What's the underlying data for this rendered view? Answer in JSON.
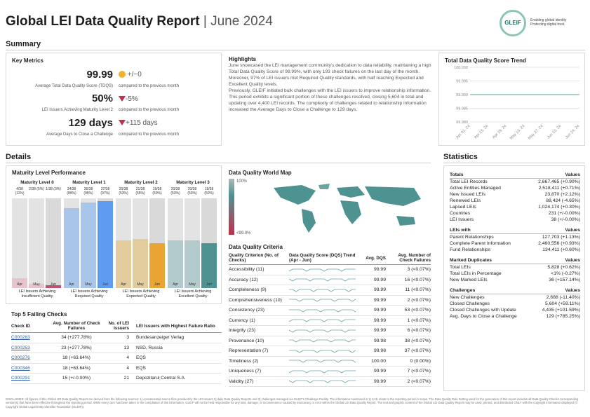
{
  "header": {
    "title": "Global LEI Data Quality Report",
    "subtitle": "June 2024",
    "logo_text": "GLEIF",
    "logo_tagline_1": "Enabling global identity",
    "logo_tagline_2": "Protecting digital trust."
  },
  "summary": {
    "heading": "Summary",
    "key_metrics": {
      "title": "Key Metrics",
      "items": [
        {
          "value": "99.99",
          "label": "Average Total Data Quality Score (TDQS)",
          "delta": "+/−0",
          "indicator": "neutral",
          "cmp": "compared to the previous month"
        },
        {
          "value": "50%",
          "label": "LEI Issuers Achieving Maturity Level 2",
          "delta": "-5%",
          "indicator": "down",
          "cmp": "compared to the previous month"
        },
        {
          "value": "129 days",
          "label": "Average Days to Close a Challenge",
          "delta": "+115 days",
          "indicator": "down",
          "cmp": "compared to the previous month"
        }
      ]
    },
    "highlights": {
      "title": "Highlights",
      "p1": "June showcased the LEI management community's dedication to data reliability, maintaining a high Total Data Quality Score of 99.99%, with only 193 check failures on the last day of the month. Moreover, 97% of LEI issuers met Required Quality standards, with half reaching Expected and Excellent Quality levels.",
      "p2": "Previously, GLEIF initiated bulk challenges with the LEI issuers to improve relationship information. This period exhibits a significant portion of these challenges resolved, closing 5,604 in total and updating over 4,400 LEI records. The complexity of challenges related to relationship information increased the Average Days to Close a Challenge to 129 days."
    },
    "trend": {
      "title": "Total Data Quality Score Trend"
    }
  },
  "chart_data": {
    "type": "line",
    "title": "Total Data Quality Score Trend",
    "x": [
      "Apr 01, 24",
      "Apr 15, 24",
      "Apr 29, 24",
      "May 13, 24",
      "May 27, 24",
      "Jun 10, 24",
      "Jun 24, 24"
    ],
    "series": [
      {
        "values": [
          99.99,
          99.99,
          99.99,
          99.99,
          99.99,
          99.99,
          99.99
        ]
      }
    ],
    "yticks": [
      "100.000",
      "99.995",
      "99.990",
      "99.985",
      "99.980"
    ],
    "ylim": [
      99.98,
      100.0
    ]
  },
  "details": {
    "heading": "Details",
    "maturity": {
      "title": "Maturity Level Performance",
      "levels": [
        {
          "name": "Maturity Level 0",
          "vals": [
            "4/38 (11%)",
            "2/38 (5%)",
            "1/38 (3%)"
          ],
          "fill": [
            0.11,
            0.05,
            0.03
          ],
          "color": "#c05070",
          "light": "#e7c3cc",
          "caption": "LEI Issuers Achieving Insufficient Quality"
        },
        {
          "name": "Maturity Level 1",
          "vals": [
            "34/38 (89%)",
            "36/38 (95%)",
            "37/38 (97%)"
          ],
          "fill": [
            0.89,
            0.95,
            0.97
          ],
          "color": "#5d9cf0",
          "light": "#a9c6ea",
          "caption": "LEI Issuers Achieving Required Quality"
        },
        {
          "name": "Maturity Level 2",
          "vals": [
            "20/38 (53%)",
            "21/38 (55%)",
            "19/38 (50%)"
          ],
          "fill": [
            0.53,
            0.55,
            0.5
          ],
          "color": "#e8a534",
          "light": "#e2cc9e",
          "caption": "LEI Issuers Achieving Expected Quality"
        },
        {
          "name": "Maturity Level 3",
          "vals": [
            "20/38 (53%)",
            "20/38 (53%)",
            "19/38 (50%)"
          ],
          "fill": [
            0.53,
            0.53,
            0.5
          ],
          "color": "#4f9292",
          "light": "#b2cacb",
          "caption": "LEI Issuers Achieving Excellent Quality"
        }
      ],
      "months": [
        "Apr",
        "May",
        "Jun"
      ]
    },
    "map": {
      "title": "Data Quality World Map",
      "legend_top": "100%",
      "legend_bottom": "<99.0%"
    },
    "criteria": {
      "title": "Data Quality Criteria",
      "h1": "Quality Criterion (No. of Checks)",
      "h2": "Data Quality Score (DQS) Trend (Apr - Jun)",
      "h3": "Avg. DQS",
      "h4": "Avg. Number of Check Failures",
      "rows": [
        [
          "Accessibility (11)",
          "99.99",
          "3 (<0.07%)"
        ],
        [
          "Accuracy (12)",
          "99.99",
          "16 (<0.07%)"
        ],
        [
          "Completeness (9)",
          "99.99",
          "11 (<0.07%)"
        ],
        [
          "Comprehensiveness (10)",
          "99.99",
          "2 (<0.07%)"
        ],
        [
          "Consistency (23)",
          "99.99",
          "53 (<0.07%)"
        ],
        [
          "Currency (1)",
          "99.99",
          "1 (<0.07%)"
        ],
        [
          "Integrity (23)",
          "99.99",
          "6 (<0.07%)"
        ],
        [
          "Provenance (10)",
          "99.98",
          "38 (<0.07%)"
        ],
        [
          "Representation (7)",
          "99.98",
          "37 (<0.07%)"
        ],
        [
          "Timeliness (2)",
          "100.00",
          "0 (0.00%)"
        ],
        [
          "Uniqueness (7)",
          "99.99",
          "7 (<0.07%)"
        ],
        [
          "Validity (27)",
          "99.99",
          "2 (<0.07%)"
        ]
      ]
    },
    "failing": {
      "title": "Top 5 Failing Checks",
      "h1": "Check ID",
      "h2": "Avg. Number of Check Failures",
      "h3": "No. of LEI Issuers",
      "h4": "LEI Issuers with Highest Failure Ratio",
      "rows": [
        [
          "C000283",
          "34 (+277.78%)",
          "3",
          "Bundesanzeiger Verlag"
        ],
        [
          "C000253",
          "23 (+277.78%)",
          "13",
          "NSD, Russia"
        ],
        [
          "C000276",
          "18 (+63.64%)",
          "4",
          "EQS"
        ],
        [
          "C000346",
          "18 (+63.64%)",
          "4",
          "EQS"
        ],
        [
          "C000291",
          "15 (+/-0.00%)",
          "21",
          "Depozitarul Central S.A."
        ]
      ]
    }
  },
  "statistics": {
    "heading": "Statistics",
    "groups": [
      {
        "title": "Totals",
        "vh": "Values",
        "rows": [
          [
            "Total LEI Records",
            "2,667,465 (+0.90%)"
          ],
          [
            "Active Entities Managed",
            "2,518,411 (+0.71%)"
          ],
          [
            "New Issued LEIs",
            "23,870 (+2.12%)"
          ],
          [
            "Renewed LEIs",
            "88,424 (-4.65%)"
          ],
          [
            "Lapsed LEIs",
            "1,024,174 (+0.30%)"
          ],
          [
            "Countries",
            "231 (+/-0.00%)"
          ],
          [
            "LEI Issuers",
            "38 (+/-0.00%)"
          ]
        ]
      },
      {
        "title": "LEIs with",
        "vh": "Values",
        "rows": [
          [
            "Parent Relationships",
            "127,703 (+1.13%)"
          ],
          [
            "Complete Parent Information",
            "2,460,556 (+0.93%)"
          ],
          [
            "Fund Relationships",
            "134,411 (+0.60%)"
          ]
        ]
      },
      {
        "title": "Marked Duplicates",
        "vh": "Values",
        "rows": [
          [
            "Total LEIs",
            "5,828 (+0.62%)"
          ],
          [
            "Total LEIs in Percentage",
            "<1% (-0.27%)"
          ],
          [
            "New Marked LEIs",
            "36 (+157.14%)"
          ]
        ]
      },
      {
        "title": "Challenges",
        "vh": "Values",
        "rows": [
          [
            "New Challenges",
            "2,688 (-11.40%)"
          ],
          [
            "Closed Challenges",
            "5,604 (+59.11%)"
          ],
          [
            "Closed Challenges with Update",
            "4,435 (+101.59%)"
          ],
          [
            "Avg. Days to Close a Challenge",
            "129 (+785.25%)"
          ]
        ]
      }
    ]
  },
  "disclaimer": "DISCLAIMER: All figures of this Global LEI Data Quality Report are derived from the following sources: 1) concatenated source files provided by the LEI Issuers 2) daily Data Quality Reports and 3) challenges managed via GLEIF's Challenge Facility. The information mentioned in 1) to 3) relate to the reporting period in scope. The Data Quality Rule Setting used for the generation of this report includes all Data Quality Checks corresponding version(s) that have been effective throughout the reporting period. While every care has been taken in the compilation of this information, GLEIF will not be held responsible for any loss, damage, or inconvenience caused by inaccuracy or error within the Global LEI Data Quality Report. The text and graphic content of the Global LEI Data Quality Report may be used, printed, and distributed ONLY with the copyright information displayed (© Copyright Global Legal Entity Identifier Foundation (GLEIF))."
}
